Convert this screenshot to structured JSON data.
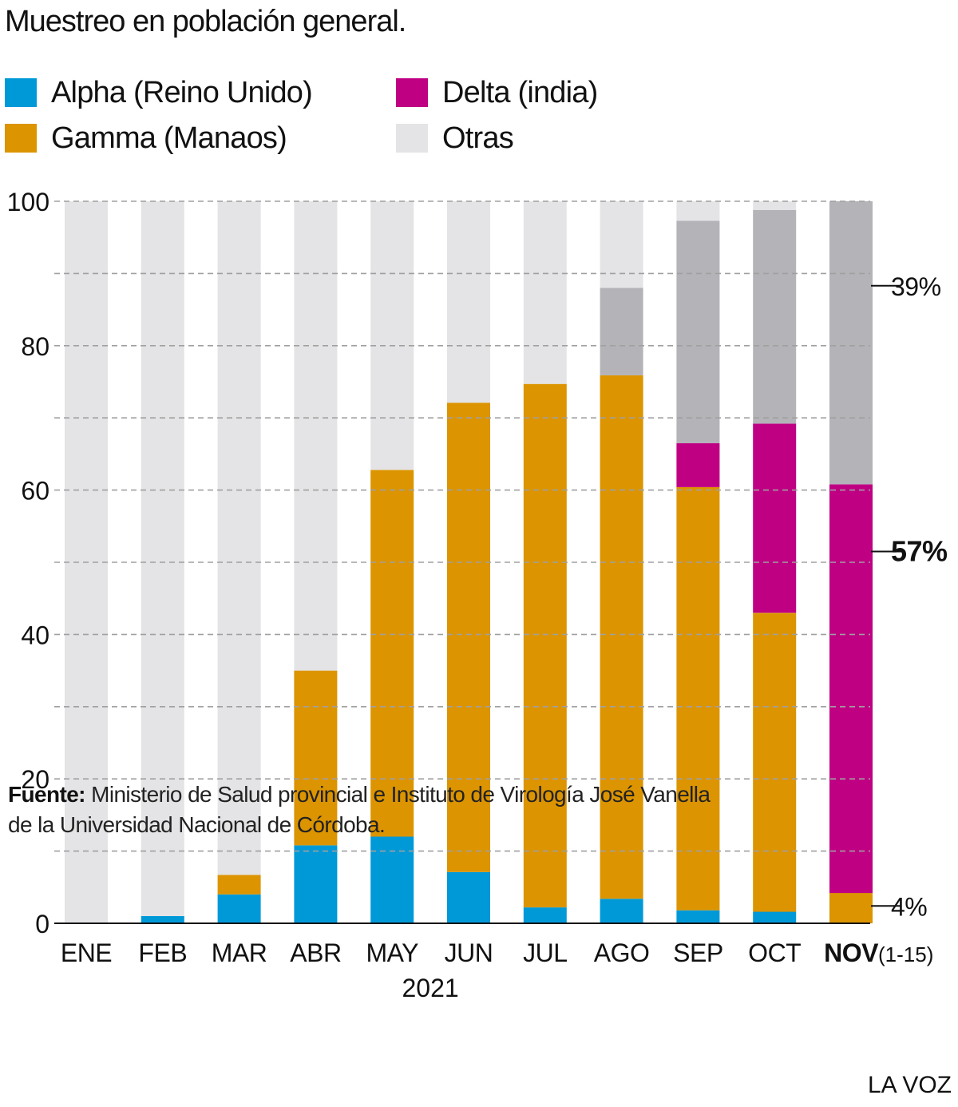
{
  "title": "Muestreo en población general.",
  "legend": [
    {
      "label": "Alpha (Reino Unido)",
      "color": "#0099d8"
    },
    {
      "label": "Delta (india)",
      "color": "#bf0083"
    },
    {
      "label": "Gamma (Manaos)",
      "color": "#dc9400"
    },
    {
      "label": "Otras",
      "color": "#e4e4e6"
    }
  ],
  "colors": {
    "alpha": "#0099d8",
    "gamma": "#dc9400",
    "delta": "#bf0083",
    "delta_plus": "#b3b3b8",
    "otras": "#e4e4e6",
    "grid": "#a0a0a0"
  },
  "source": {
    "label": "Fuente:",
    "text": "Ministerio de Salud provincial e Instituto de Virología José Vanella de la Universidad Nacional de Córdoba."
  },
  "brand": "LA VOZ",
  "chart_data": {
    "type": "bar",
    "stacked": true,
    "categories": [
      "ENE",
      "FEB",
      "MAR",
      "ABR",
      "MAY",
      "JUN",
      "JUL",
      "AGO",
      "SEP",
      "OCT",
      "NOV"
    ],
    "category_suffix": {
      "NOV": "(1-15)"
    },
    "highlight_category": "NOV",
    "x_group_label": "2021",
    "ylim": [
      0,
      100
    ],
    "yticks": [
      0,
      20,
      40,
      60,
      80,
      100
    ],
    "grid": true,
    "grid_step": 10,
    "series": [
      {
        "key": "alpha",
        "values": [
          0,
          1,
          4,
          10.8,
          12,
          7.1,
          2.2,
          3.4,
          1.8,
          1.6,
          0
        ]
      },
      {
        "key": "gamma",
        "values": [
          0,
          0,
          2.7,
          24.2,
          50.8,
          65,
          72.5,
          72.5,
          58.6,
          41.4,
          4.2
        ]
      },
      {
        "key": "delta",
        "values": [
          0,
          0,
          0,
          0,
          0,
          0,
          0,
          0,
          6.1,
          26.2,
          56.6
        ]
      },
      {
        "key": "delta_plus",
        "values": [
          0,
          0,
          0,
          0,
          0,
          0,
          0,
          12.1,
          30.8,
          29.6,
          39.2
        ]
      },
      {
        "key": "otras",
        "values": [
          100,
          99,
          93.3,
          65,
          37.2,
          27.9,
          25.3,
          12,
          2.7,
          1.2,
          0
        ]
      }
    ],
    "annotations": [
      {
        "text": "39%",
        "y": 88.3,
        "bold": false
      },
      {
        "text": "57%",
        "y": 51.5,
        "bold": true
      },
      {
        "text": "4%",
        "y": 2.4,
        "bold": false
      }
    ]
  }
}
